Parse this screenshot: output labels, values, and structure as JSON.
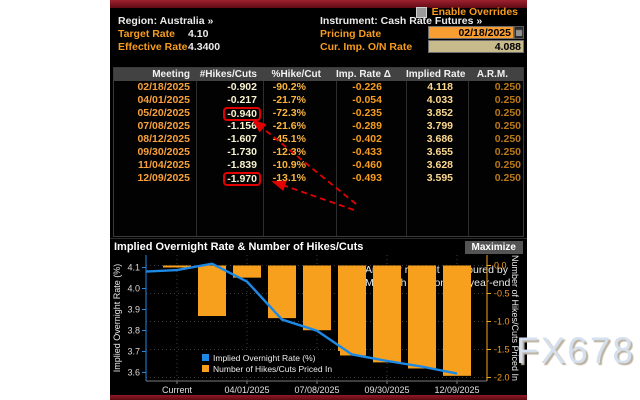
{
  "header": {
    "enable_overrides_label": "Enable Overrides",
    "region": "Region: Australia »",
    "instrument": "Instrument: Cash Rate Futures »",
    "target_rate_label": "Target Rate",
    "target_rate_value": "4.10",
    "effective_rate_label": "Effective Rate",
    "effective_rate_value": "4.3400",
    "pricing_date_label": "Pricing Date",
    "pricing_date_value": "02/18/2025",
    "cur_imp_label": "Cur. Imp. O/N Rate",
    "cur_imp_value": "4.088"
  },
  "table": {
    "columns": [
      "Meeting",
      "#Hikes/Cuts",
      "%Hike/Cut",
      "Imp. Rate Δ",
      "Implied Rate",
      "A.R.M."
    ],
    "rows": [
      [
        "02/18/2025",
        "-0.902",
        "-90.2%",
        "-0.226",
        "4.118",
        "0.250"
      ],
      [
        "04/01/2025",
        "-0.217",
        "-21.7%",
        "-0.054",
        "4.033",
        "0.250"
      ],
      [
        "05/20/2025",
        "-0.940",
        "-72.3%",
        "-0.235",
        "3.852",
        "0.250"
      ],
      [
        "07/08/2025",
        "-1.156",
        "-21.6%",
        "-0.289",
        "3.799",
        "0.250"
      ],
      [
        "08/12/2025",
        "-1.607",
        "-45.1%",
        "-0.402",
        "3.686",
        "0.250"
      ],
      [
        "09/30/2025",
        "-1.730",
        "-12.3%",
        "-0.433",
        "3.655",
        "0.250"
      ],
      [
        "11/04/2025",
        "-1.839",
        "-10.9%",
        "-0.460",
        "3.628",
        "0.250"
      ],
      [
        "12/09/2025",
        "-1.970",
        "-13.1%",
        "-0.493",
        "3.595",
        "0.250"
      ]
    ],
    "flagged_cells": [
      [
        2,
        1
      ],
      [
        7,
        1
      ]
    ]
  },
  "annotation": {
    "line1": "Another rate cut is favoured by",
    "line2": "May with a second by year-end"
  },
  "chart": {
    "title": "Implied Overnight Rate & Number of Hikes/Cuts",
    "maximize_label": "Maximize"
  },
  "chart_data": {
    "type": "line+bar",
    "x": [
      "Current",
      "02/18/2025",
      "04/01/2025",
      "05/20/2025",
      "07/08/2025",
      "08/12/2025",
      "09/30/2025",
      "11/04/2025",
      "12/09/2025"
    ],
    "x_tick_labels": [
      "Current",
      "04/01/2025",
      "07/08/2025",
      "09/30/2025",
      "12/09/2025"
    ],
    "series": [
      {
        "name": "Implied Overnight Rate (%)",
        "type": "line",
        "axis": "left",
        "color": "#1e88e5",
        "values": [
          4.088,
          4.118,
          4.033,
          3.852,
          3.799,
          3.686,
          3.655,
          3.628,
          3.595
        ]
      },
      {
        "name": "Number of Hikes/Cuts Priced In",
        "type": "bar",
        "axis": "right",
        "color": "#f7a01e",
        "values": [
          0,
          -0.902,
          -0.217,
          -0.94,
          -1.156,
          -1.607,
          -1.73,
          -1.839,
          -1.97
        ]
      }
    ],
    "left_axis": {
      "label": "Implied Overnight Rate (%)",
      "ticks": [
        "4.1",
        "4.0",
        "3.9",
        "3.8",
        "3.7",
        "3.6"
      ],
      "min": 3.55,
      "max": 4.15
    },
    "right_axis": {
      "label": "Number of Hikes/Cuts Priced In",
      "ticks": [
        "0.0",
        "-0.5",
        "-1.0",
        "-1.5",
        "-2.0"
      ],
      "min": -2.0,
      "max": 0.0
    },
    "legend": [
      "Implied Overnight Rate (%)",
      "Number of Hikes/Cuts Priced In"
    ],
    "grid": true,
    "legend_position": "bottom-left"
  },
  "watermark": "FX678",
  "colors": {
    "amber": "#f79c1e",
    "bar_orange": "#f7a01e",
    "line_blue": "#1e88e5",
    "annotation_red": "#e30000",
    "title_bar_red": "#7e1420",
    "date_input_bg": "#f79d32",
    "rate_input_bg": "#c7ba8b"
  }
}
